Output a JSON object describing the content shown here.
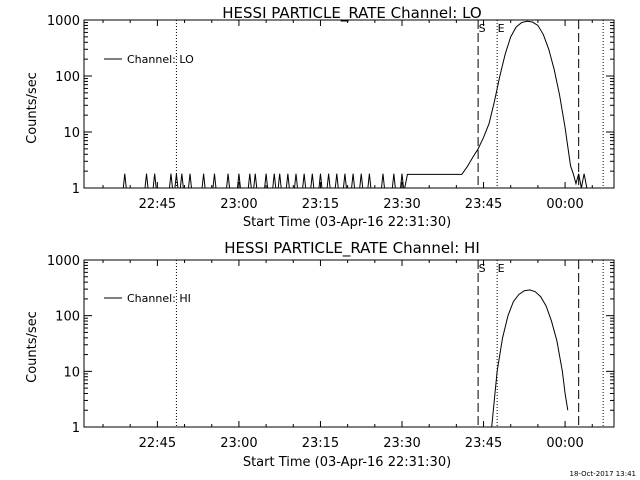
{
  "chart_data": [
    {
      "type": "line",
      "title": "HESSI PARTICLE_RATE Channel: LO",
      "xlabel": "Start Time (03-Apr-16 22:31:30)",
      "ylabel": "Counts/sec",
      "yscale": "log",
      "ylim": [
        1,
        1000
      ],
      "xlim": [
        "22:31:30",
        "00:09:00"
      ],
      "xticks": [
        "22:45",
        "23:00",
        "23:15",
        "23:30",
        "23:45",
        "00:00"
      ],
      "yticks": [
        "1",
        "10",
        "100",
        "1000"
      ],
      "legend": {
        "label": "Channel: LO",
        "position": "top-left"
      },
      "markers": [
        {
          "label": "S",
          "time": "23:44:00",
          "style": "dashed"
        },
        {
          "label": "E",
          "time": "23:47:30",
          "style": "dotted"
        }
      ],
      "extra_lines": [
        {
          "time": "22:48:30",
          "style": "dotted"
        },
        {
          "time": "00:02:30",
          "style": "dashed"
        },
        {
          "time": "00:07:00",
          "style": "dotted"
        }
      ],
      "series": [
        {
          "spikes": [
            "22:39:00",
            "22:43:00",
            "22:44:30",
            "22:47:30",
            "22:48:30",
            "22:49:30",
            "22:51:00",
            "22:53:30",
            "22:55:30",
            "22:58:00",
            "23:00:00",
            "23:02:00",
            "23:03:00",
            "23:05:00",
            "23:06:30",
            "23:07:30",
            "23:09:00",
            "23:10:30",
            "23:12:00",
            "23:13:30",
            "23:15:00",
            "23:16:30",
            "23:18:00",
            "23:19:30",
            "23:21:00",
            "23:22:30",
            "23:24:00",
            "23:26:30",
            "23:28:30",
            "23:30:00"
          ],
          "spike_value": 1.8,
          "baseline": 1,
          "curve": [
            [
              "23:30:30",
              1
            ],
            [
              "23:31:00",
              1.75
            ],
            [
              "23:41:00",
              1.75
            ],
            [
              "23:42:00",
              2.4
            ],
            [
              "23:43:00",
              3.5
            ],
            [
              "23:44:00",
              5
            ],
            [
              "23:45:00",
              8
            ],
            [
              "23:46:00",
              14
            ],
            [
              "23:47:00",
              35
            ],
            [
              "23:48:00",
              100
            ],
            [
              "23:49:00",
              250
            ],
            [
              "23:50:00",
              500
            ],
            [
              "23:51:00",
              750
            ],
            [
              "23:52:00",
              900
            ],
            [
              "23:53:00",
              950
            ],
            [
              "23:54:00",
              920
            ],
            [
              "23:55:00",
              800
            ],
            [
              "23:56:00",
              550
            ],
            [
              "23:57:00",
              300
            ],
            [
              "23:58:00",
              130
            ],
            [
              "23:59:00",
              45
            ],
            [
              "00:00:00",
              12
            ],
            [
              "00:01:00",
              2.5
            ],
            [
              "00:01:30",
              1.8
            ],
            [
              "00:02:00",
              1.2
            ],
            [
              "00:02:30",
              1.8
            ],
            [
              "00:03:00",
              1
            ],
            [
              "00:03:30",
              1.8
            ],
            [
              "00:04:00",
              1
            ]
          ]
        }
      ]
    },
    {
      "type": "line",
      "title": "HESSI PARTICLE_RATE Channel: HI",
      "xlabel": "Start Time (03-Apr-16 22:31:30)",
      "ylabel": "Counts/sec",
      "yscale": "log",
      "ylim": [
        1,
        1000
      ],
      "xlim": [
        "22:31:30",
        "00:09:00"
      ],
      "xticks": [
        "22:45",
        "23:00",
        "23:15",
        "23:30",
        "23:45",
        "00:00"
      ],
      "yticks": [
        "1",
        "10",
        "100",
        "1000"
      ],
      "legend": {
        "label": "Channel: HI",
        "position": "top-left"
      },
      "markers": [
        {
          "label": "S",
          "time": "23:44:00",
          "style": "dashed"
        },
        {
          "label": "E",
          "time": "23:47:30",
          "style": "dotted"
        }
      ],
      "extra_lines": [
        {
          "time": "22:48:30",
          "style": "dotted"
        },
        {
          "time": "00:02:30",
          "style": "dashed"
        },
        {
          "time": "00:07:00",
          "style": "dotted"
        }
      ],
      "series": [
        {
          "spikes": [],
          "curve": [
            [
              "23:46:30",
              1
            ],
            [
              "23:47:30",
              10
            ],
            [
              "23:48:30",
              40
            ],
            [
              "23:49:30",
              100
            ],
            [
              "23:50:30",
              180
            ],
            [
              "23:51:30",
              240
            ],
            [
              "23:52:30",
              280
            ],
            [
              "23:53:30",
              290
            ],
            [
              "23:54:30",
              270
            ],
            [
              "23:55:30",
              220
            ],
            [
              "23:56:30",
              150
            ],
            [
              "23:57:30",
              80
            ],
            [
              "23:58:30",
              35
            ],
            [
              "23:59:30",
              10
            ],
            [
              "00:00:00",
              4
            ],
            [
              "00:00:30",
              2
            ]
          ]
        }
      ]
    }
  ],
  "timestamp": "18-Oct-2017 13:41"
}
